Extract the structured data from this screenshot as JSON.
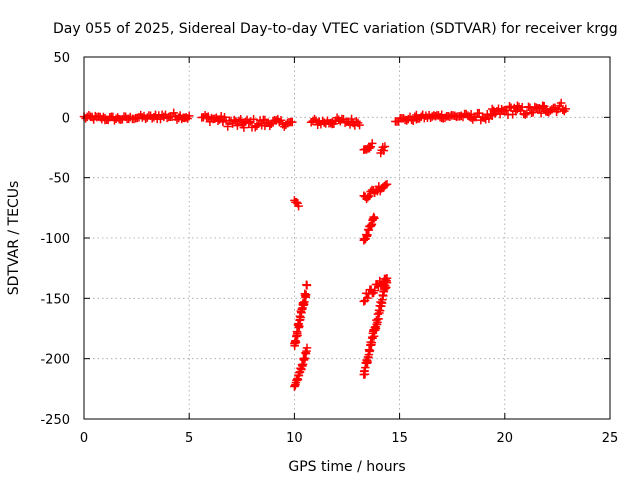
{
  "chart_data": {
    "type": "scatter",
    "title": "Day 055 of 2025, Sidereal Day-to-day VTEC variation (SDTVAR) for receiver krgg",
    "xlabel": "GPS time / hours",
    "ylabel": "SDTVAR / TECUs",
    "xlim": [
      0,
      25
    ],
    "ylim": [
      -250,
      50
    ],
    "xticks": [
      0,
      5,
      10,
      15,
      20,
      25
    ],
    "yticks": [
      -250,
      -200,
      -150,
      -100,
      -50,
      0,
      50
    ],
    "grid": true,
    "legend": "none",
    "marker": "plus",
    "color": "#ff0000",
    "series": [
      {
        "segments": [
          {
            "x": [
              0.0,
              1.0
            ],
            "y": [
              0,
              -1
            ],
            "spread": 2
          },
          {
            "x": [
              1.0,
              2.2
            ],
            "y": [
              -1,
              -1
            ],
            "spread": 2
          },
          {
            "x": [
              2.3,
              3.4
            ],
            "y": [
              0,
              0
            ],
            "spread": 2
          },
          {
            "x": [
              3.4,
              4.5
            ],
            "y": [
              1,
              1
            ],
            "spread": 3
          },
          {
            "x": [
              4.5,
              5.0
            ],
            "y": [
              1,
              0
            ],
            "spread": 2
          },
          {
            "x": [
              5.6,
              6.6
            ],
            "y": [
              0,
              -2
            ],
            "spread": 3
          },
          {
            "x": [
              6.6,
              7.6
            ],
            "y": [
              -3,
              -6
            ],
            "spread": 4
          },
          {
            "x": [
              7.6,
              8.6
            ],
            "y": [
              -5,
              -5
            ],
            "spread": 4
          },
          {
            "x": [
              8.6,
              9.9
            ],
            "y": [
              -4,
              -5
            ],
            "spread": 3
          },
          {
            "x": [
              10.8,
              11.8
            ],
            "y": [
              -4,
              -4
            ],
            "spread": 3
          },
          {
            "x": [
              11.8,
              13.1
            ],
            "y": [
              -3,
              -4
            ],
            "spread": 3
          },
          {
            "x": [
              14.8,
              15.8
            ],
            "y": [
              -2,
              -1
            ],
            "spread": 2
          },
          {
            "x": [
              15.8,
              17.0
            ],
            "y": [
              0,
              1
            ],
            "spread": 2
          },
          {
            "x": [
              17.0,
              18.4
            ],
            "y": [
              1,
              1
            ],
            "spread": 2
          },
          {
            "x": [
              18.4,
              19.4
            ],
            "y": [
              1,
              0
            ],
            "spread": 3
          },
          {
            "x": [
              19.4,
              20.6
            ],
            "y": [
              3,
              7
            ],
            "spread": 4
          },
          {
            "x": [
              20.6,
              21.8
            ],
            "y": [
              5,
              6
            ],
            "spread": 4
          },
          {
            "x": [
              21.8,
              22.9
            ],
            "y": [
              7,
              9
            ],
            "spread": 4
          },
          {
            "x": [
              10.0,
              10.2
            ],
            "y": [
              -70,
              -72
            ],
            "spread": 2
          },
          {
            "x": [
              10.0,
              10.6
            ],
            "y": [
              -190,
              -140
            ],
            "spread": 4
          },
          {
            "x": [
              10.0,
              10.6
            ],
            "y": [
              -225,
              -193
            ],
            "spread": 2
          },
          {
            "x": [
              13.3,
              13.8
            ],
            "y": [
              -103,
              -82
            ],
            "spread": 2
          },
          {
            "x": [
              13.3,
              13.7
            ],
            "y": [
              -26,
              -23
            ],
            "spread": 2
          },
          {
            "x": [
              14.1,
              14.3
            ],
            "y": [
              -28,
              -25
            ],
            "spread": 2
          },
          {
            "x": [
              13.3,
              14.4
            ],
            "y": [
              -66,
              -55
            ],
            "spread": 3
          },
          {
            "x": [
              13.3,
              14.4
            ],
            "y": [
              -150,
              -133
            ],
            "spread": 3
          },
          {
            "x": [
              13.3,
              14.4
            ],
            "y": [
              -213,
              -135
            ],
            "spread": 4
          }
        ]
      }
    ]
  }
}
